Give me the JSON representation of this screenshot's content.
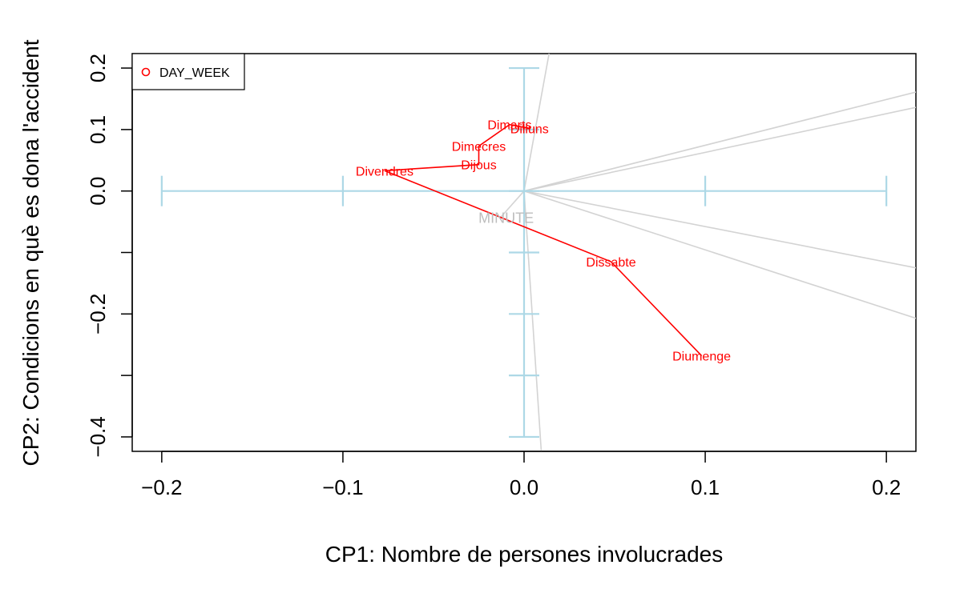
{
  "chart_data": {
    "type": "scatter",
    "title": "",
    "xlabel": "CP1: Nombre de persones involucrades",
    "ylabel": "CP2: Condicions en què es dona l'accident",
    "xlim": [
      -0.2163,
      0.2163
    ],
    "ylim": [
      -0.4235,
      0.2235
    ],
    "x_ticks": [
      -0.2,
      -0.1,
      0.0,
      0.1,
      0.2
    ],
    "x_tick_labels": [
      "−0.2",
      "−0.1",
      "0.0",
      "0.1",
      "0.2"
    ],
    "y_ticks": [
      -0.4,
      -0.3,
      -0.2,
      -0.1,
      0.0,
      0.1,
      0.2
    ],
    "y_tick_labels": [
      "−0.4",
      "",
      "−0.2",
      "",
      "0.0",
      "0.1",
      "0.2"
    ],
    "grid": false,
    "legend": {
      "position": "top-left",
      "entries": [
        {
          "label": "DAY_WEEK",
          "color": "#ff0000",
          "marker": "open-circle"
        }
      ]
    },
    "series": [
      {
        "name": "DAY_WEEK",
        "color": "#ff0000",
        "points": [
          {
            "label": "Dilluns",
            "x": 0.003,
            "y": 0.102
          },
          {
            "label": "Dimarts",
            "x": -0.008,
            "y": 0.108
          },
          {
            "label": "Dimecres",
            "x": -0.025,
            "y": 0.073
          },
          {
            "label": "Dijous",
            "x": -0.025,
            "y": 0.043
          },
          {
            "label": "Divendres",
            "x": -0.077,
            "y": 0.033
          },
          {
            "label": "Dissabte",
            "x": 0.048,
            "y": -0.115
          },
          {
            "label": "Diumenge",
            "x": 0.098,
            "y": -0.268
          }
        ]
      }
    ],
    "variable_label": "MINUTE",
    "variable_label_position": {
      "x": -0.013,
      "y": -0.043
    },
    "variable_lines": [
      {
        "x2": 0.0138,
        "y2": 0.2235
      },
      {
        "x2": 0.2163,
        "y2": 0.161
      },
      {
        "x2": 0.2163,
        "y2": 0.136
      },
      {
        "x2": 0.2163,
        "y2": -0.125
      },
      {
        "x2": 0.2163,
        "y2": -0.207
      },
      {
        "x2": 0.0095,
        "y2": -0.4235
      },
      {
        "x2": -0.013,
        "y2": -0.043
      }
    ],
    "scale_axes": {
      "color": "#add8e6",
      "horizontal_ticks": [
        -0.2,
        -0.1,
        0.0,
        0.1,
        0.2
      ],
      "vertical_ticks": [
        -0.4,
        -0.3,
        -0.2,
        -0.1,
        0.0,
        0.1,
        0.2
      ]
    },
    "colors": {
      "points": "#ff0000",
      "variable_lines": "#d3d3d3",
      "variable_label": "#bdbdbd",
      "scale_axes": "#add8e6"
    }
  }
}
